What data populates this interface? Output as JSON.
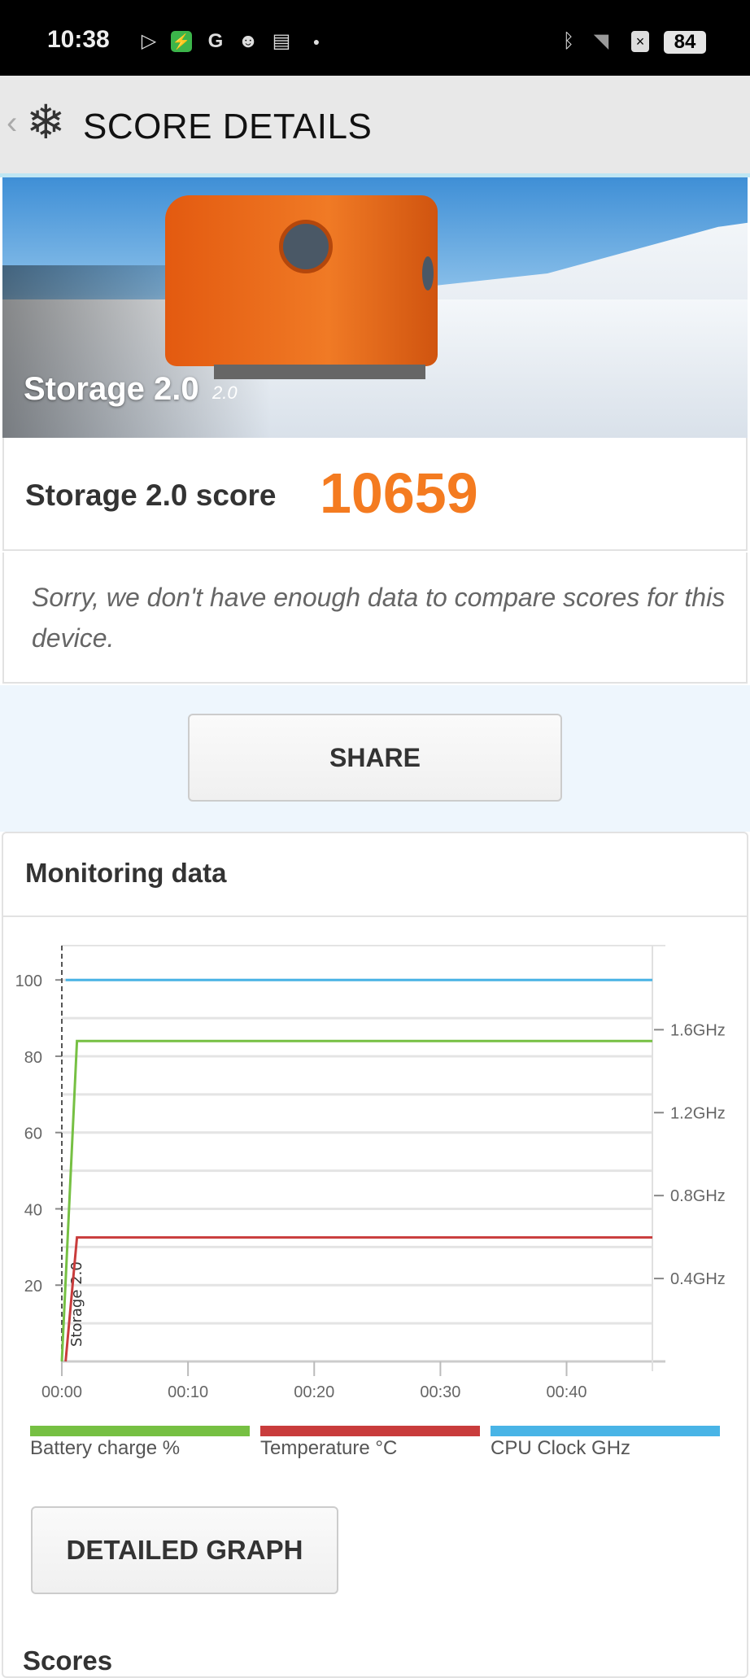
{
  "status_bar": {
    "time": "10:38",
    "battery": "84",
    "icons": [
      "play-store-icon",
      "shield-app-icon",
      "google-icon",
      "cat-app-icon",
      "calendar-icon",
      "dot-icon",
      "bluetooth-icon",
      "wifi-icon",
      "sim-x-icon",
      "battery-icon"
    ]
  },
  "header": {
    "title": "SCORE DETAILS",
    "back_icon": "chevron-left-icon",
    "logo_icon": "snowflake-icon"
  },
  "hero": {
    "test_name": "Storage 2.0",
    "version": "2.0"
  },
  "score": {
    "label": "Storage 2.0 score",
    "value": "10659",
    "color": "#f47b20"
  },
  "compare_message": "Sorry, we don't have enough data to compare scores for this device.",
  "share_label": "SHARE",
  "monitoring": {
    "title": "Monitoring data",
    "detailed_graph_label": "DETAILED GRAPH"
  },
  "scores_heading": "Scores",
  "chart_data": {
    "type": "line",
    "x_unit": "seconds",
    "xlim": [
      0,
      46.8
    ],
    "x_ticks": [
      0,
      10,
      20,
      30,
      40
    ],
    "x_tick_labels": [
      "00:00",
      "00:10",
      "00:20",
      "00:30",
      "00:40"
    ],
    "ylim_left": [
      0,
      109
    ],
    "y_ticks_left": [
      20,
      40,
      60,
      80,
      100
    ],
    "y_tick_labels_left": [
      "20",
      "40",
      "60",
      "80",
      "100"
    ],
    "ylim_right_ghz": [
      0,
      2.0
    ],
    "y_ticks_right": [
      0.4,
      0.8,
      1.2,
      1.6
    ],
    "y_tick_labels_right": [
      "0.4GHz",
      "0.8GHz",
      "1.2GHz",
      "1.6GHz"
    ],
    "grid": true,
    "marker": {
      "x": 0,
      "label": "Storage 2.0"
    },
    "legend_position": "bottom",
    "series": [
      {
        "name": "Battery charge %",
        "color": "#76c043",
        "axis": "left",
        "points": [
          [
            0,
            0
          ],
          [
            1.2,
            84
          ],
          [
            46.8,
            84
          ]
        ]
      },
      {
        "name": "Temperature °C",
        "color": "#c93c3c",
        "axis": "left",
        "points": [
          [
            0.3,
            0
          ],
          [
            1.2,
            32.5
          ],
          [
            46.8,
            32.5
          ]
        ]
      },
      {
        "name": "CPU Clock GHz",
        "color": "#49b4e6",
        "axis": "right",
        "points": [
          [
            0.3,
            1.84
          ],
          [
            46.8,
            1.84
          ]
        ]
      }
    ]
  }
}
